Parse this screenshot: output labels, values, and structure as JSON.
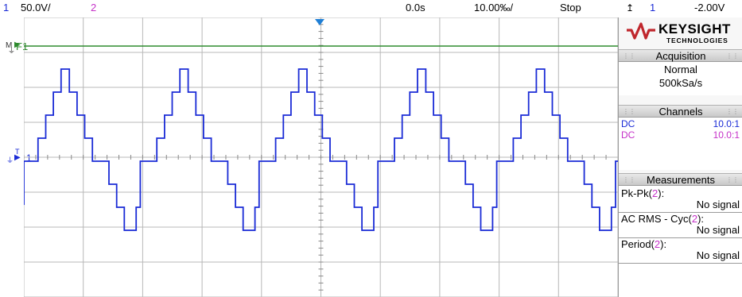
{
  "status_bar": {
    "ch1_number": "1",
    "ch1_scale": "50.0V/",
    "ch2_number": "2",
    "time_offset": "0.0s",
    "timebase": "10.00‰/",
    "run_state": "Stop",
    "trigger_channel": "1",
    "trigger_level": "-2.00V"
  },
  "logo": {
    "brand": "KEYSIGHT",
    "sub": "TECHNOLOGIES"
  },
  "markers": {
    "math_label": "M",
    "function_label": "F1",
    "ch1_label": "1",
    "trigger_label": "T"
  },
  "acquisition": {
    "title": "Acquisition",
    "mode": "Normal",
    "rate": "500kSa/s"
  },
  "channels": {
    "title": "Channels",
    "rows": [
      {
        "coupling": "DC",
        "probe": "10.0:1",
        "color": "#1a2bd6"
      },
      {
        "coupling": "DC",
        "probe": "10.0:1",
        "color": "#c531c8"
      }
    ]
  },
  "measurements": {
    "title": "Measurements",
    "items": [
      {
        "name": "Pk-Pk(",
        "source": "2",
        "close": "):",
        "value": "No signal"
      },
      {
        "name": "AC RMS - Cyc(",
        "source": "2",
        "close": "):",
        "value": "No signal"
      },
      {
        "name": "Period(",
        "source": "2",
        "close": "):",
        "value": "No signal"
      }
    ]
  },
  "colors": {
    "ch1": "#1a2bd6",
    "ch2": "#c531c8",
    "f1": "#2e8b2e",
    "grid": "#b8b8b8",
    "trigger_marker": "#1f7fd6"
  },
  "waveform": {
    "channel": "1",
    "shape": "stepped multilevel sine",
    "cycles_visible": 5
  }
}
